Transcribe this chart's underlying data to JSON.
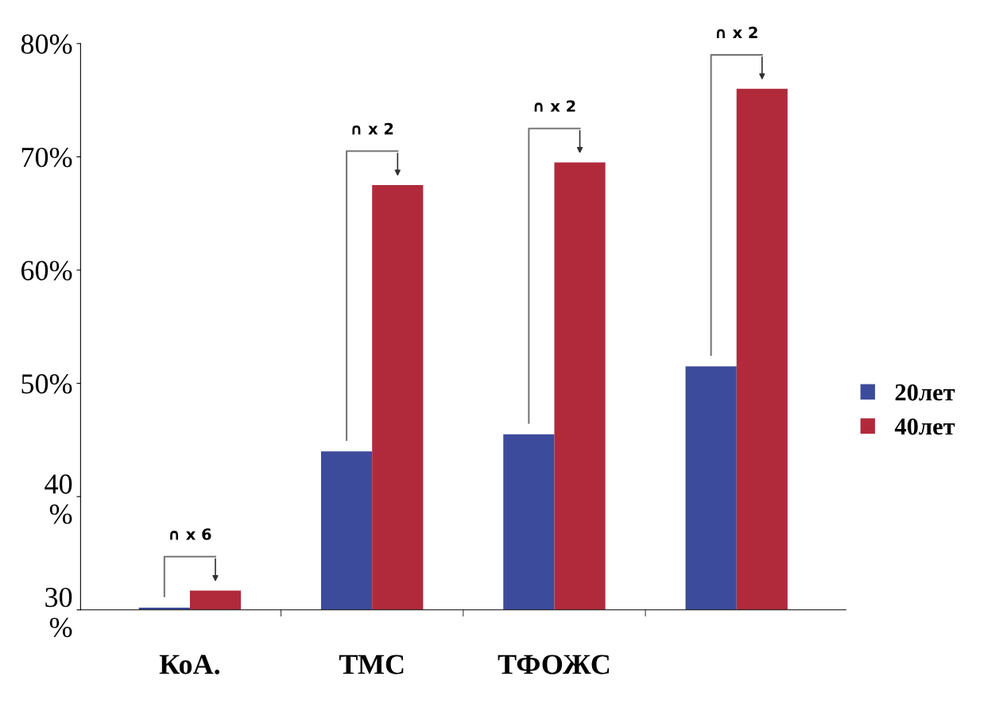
{
  "chart_data": {
    "type": "bar",
    "categories": [
      "КоА.",
      "ТМС",
      "ТФОЖС",
      null
    ],
    "series": [
      {
        "name": "20лет",
        "color": "#3d4b9c",
        "values": [
          30.2,
          44,
          45.5,
          51.5
        ]
      },
      {
        "name": "40лет",
        "color": "#b02a3c",
        "values": [
          31.7,
          67.5,
          69.5,
          76
        ]
      }
    ],
    "ylim": [
      30,
      80
    ],
    "yticks": [
      {
        "value": 30,
        "label": "30\n%"
      },
      {
        "value": 40,
        "label": "40\n%"
      },
      "50%",
      "60%",
      "70%",
      "80%"
    ],
    "annotations": [
      "∩ x 6",
      "∩ x 2",
      "∩ x 2",
      "∩ x 2"
    ],
    "legend": "right",
    "grid": false
  }
}
